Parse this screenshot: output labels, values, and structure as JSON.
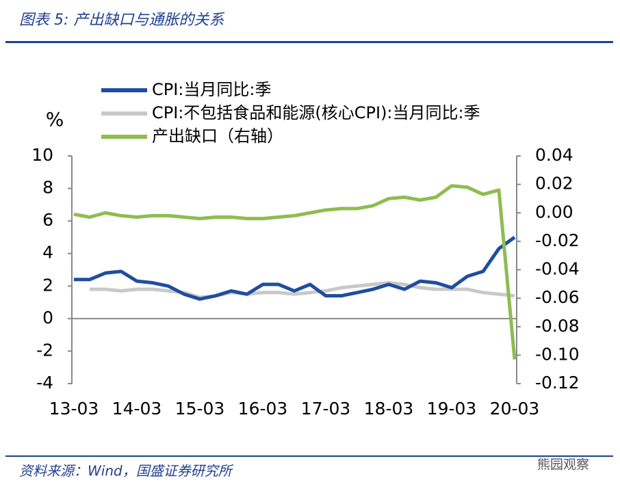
{
  "chart_data": {
    "type": "line",
    "title": "图表 5:  产出缺口与通胀的关系",
    "y_label": "%",
    "source": "资料来源：Wind，国盛证券研究所",
    "watermark": "熊园观察",
    "categories": [
      "13-03",
      null,
      null,
      null,
      "14-03",
      null,
      null,
      null,
      "15-03",
      null,
      null,
      null,
      "16-03",
      null,
      null,
      null,
      "17-03",
      null,
      null,
      null,
      "18-03",
      null,
      null,
      null,
      "19-03",
      null,
      null,
      null,
      "20-03"
    ],
    "series": [
      {
        "name": "CPI:当月同比:季",
        "color": "#1f4e9e",
        "axis": "y",
        "values": [
          2.4,
          2.4,
          2.8,
          2.9,
          2.3,
          2.2,
          2.0,
          1.5,
          1.2,
          1.4,
          1.7,
          1.5,
          2.1,
          2.1,
          1.7,
          2.1,
          1.4,
          1.4,
          1.6,
          1.8,
          2.1,
          1.8,
          2.3,
          2.2,
          1.9,
          2.6,
          2.9,
          4.3,
          5.0
        ]
      },
      {
        "name": "CPI:不包括食品和能源(核心CPI):当月同比:季",
        "color": "#c8c8c8",
        "axis": "y",
        "values": [
          null,
          1.8,
          1.8,
          1.7,
          1.8,
          1.8,
          1.7,
          1.6,
          1.3,
          1.4,
          1.6,
          1.5,
          1.6,
          1.6,
          1.5,
          1.6,
          1.7,
          1.9,
          2.0,
          2.1,
          2.2,
          2.1,
          1.9,
          1.8,
          1.8,
          1.8,
          1.6,
          1.5,
          1.4
        ]
      },
      {
        "name": "产出缺口（右轴）",
        "color": "#8fbc4f",
        "axis": "y2",
        "values": [
          -0.001,
          -0.003,
          0.0,
          -0.002,
          -0.003,
          -0.002,
          -0.002,
          -0.003,
          -0.004,
          -0.003,
          -0.003,
          -0.004,
          -0.004,
          -0.003,
          -0.002,
          0.0,
          0.002,
          0.003,
          0.003,
          0.005,
          0.01,
          0.011,
          0.009,
          0.011,
          0.019,
          0.018,
          0.013,
          0.016,
          -0.103
        ]
      }
    ],
    "ylim": [
      -4,
      10
    ],
    "yticks": [
      -4,
      -2,
      0,
      2,
      4,
      6,
      8,
      10
    ],
    "y2lim": [
      -0.12,
      0.04
    ],
    "y2ticks": [
      -0.12,
      {
        "value": -0.1,
        "label": "-0.10"
      },
      -0.08,
      -0.06,
      -0.04,
      -0.02,
      {
        "value": 0,
        "label": "0.00"
      },
      0.02,
      0.04
    ]
  }
}
